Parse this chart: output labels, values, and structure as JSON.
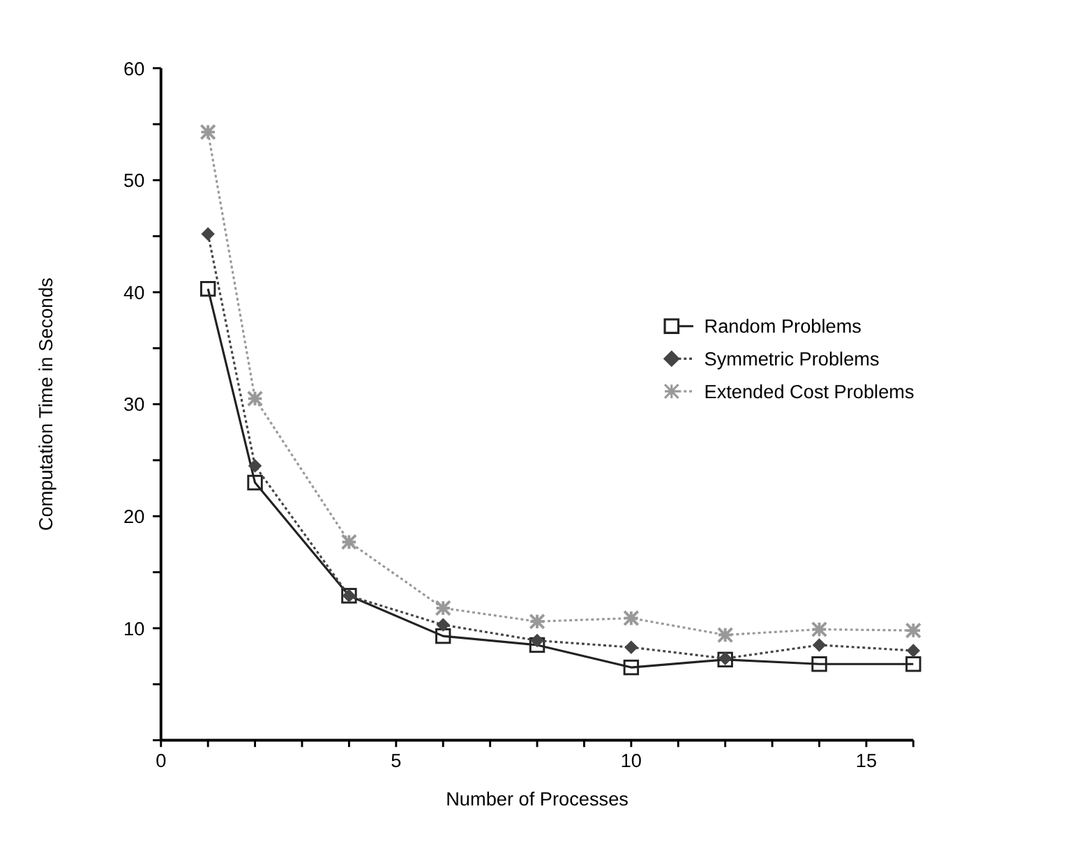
{
  "chart_data": {
    "type": "line",
    "xlabel": "Number of Processes",
    "ylabel": "Computation Time in Seconds",
    "xlim": [
      0,
      16
    ],
    "ylim": [
      0,
      60
    ],
    "xticks": [
      0,
      {
        "value": 1,
        "label": null
      },
      {
        "value": 2,
        "label": null
      },
      {
        "value": 3,
        "label": null
      },
      {
        "value": 4,
        "label": null
      },
      5,
      {
        "value": 6,
        "label": null
      },
      {
        "value": 7,
        "label": null
      },
      {
        "value": 8,
        "label": null
      },
      {
        "value": 9,
        "label": null
      },
      10,
      {
        "value": 11,
        "label": null
      },
      {
        "value": 12,
        "label": null
      },
      {
        "value": 13,
        "label": null
      },
      {
        "value": 14,
        "label": null
      },
      15,
      {
        "value": 16,
        "label": null
      }
    ],
    "yticks": [
      {
        "value": 0,
        "label": null
      },
      {
        "value": 5,
        "label": null
      },
      10,
      {
        "value": 15,
        "label": null
      },
      20,
      {
        "value": 25,
        "label": null
      },
      30,
      {
        "value": 35,
        "label": null
      },
      40,
      {
        "value": 45,
        "label": null
      },
      50,
      {
        "value": 55,
        "label": null
      },
      60
    ],
    "x": [
      1,
      2,
      4,
      6,
      8,
      10,
      12,
      14,
      16
    ],
    "legend": "right",
    "grid": false,
    "series": [
      {
        "name": "Random Problems",
        "color": "#222222",
        "marker": "square",
        "line_style": "solid",
        "values": [
          40.3,
          23,
          12.9,
          9.3,
          8.5,
          6.5,
          7.2,
          6.8,
          6.8
        ]
      },
      {
        "name": "Symmetric Problems",
        "color": "#444444",
        "marker": "diamond",
        "line_style": "dotted",
        "values": [
          45.2,
          24.5,
          12.9,
          10.3,
          8.9,
          8.3,
          7.3,
          8.5,
          8.0
        ]
      },
      {
        "name": "Extended Cost Problems",
        "color": "#999999",
        "marker": "cross",
        "line_style": "dotted",
        "values": [
          54.3,
          30.5,
          17.7,
          11.8,
          10.6,
          10.9,
          9.4,
          9.9,
          9.8
        ]
      }
    ]
  }
}
